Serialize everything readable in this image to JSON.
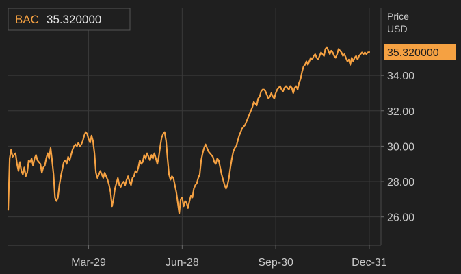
{
  "chart_data": {
    "type": "line",
    "ticker": "BAC",
    "last_value_label": "35.320000",
    "axis_title_line1": "Price",
    "axis_title_line2": "USD",
    "yticks": [
      {
        "value": 26,
        "label": "26.00"
      },
      {
        "value": 28,
        "label": "28.00"
      },
      {
        "value": 30,
        "label": "30.00"
      },
      {
        "value": 32,
        "label": "32.00"
      },
      {
        "value": 34,
        "label": "34.00"
      }
    ],
    "xticks": [
      {
        "index": 55,
        "label": "Mar-29"
      },
      {
        "index": 119,
        "label": "Jun-28"
      },
      {
        "index": 183,
        "label": "Sep-30"
      },
      {
        "index": 247,
        "label": "Dec-31"
      }
    ],
    "ylim": [
      24.4,
      37.8
    ],
    "xlim": [
      0,
      255
    ],
    "grid": true,
    "colors": {
      "line": "#f5a142",
      "grid": "#3a3a3a",
      "background": "#1f1f1f",
      "text": "#c8c8c8",
      "badge_bg": "#f5a142",
      "badge_text": "#1f1f1f"
    },
    "series": [
      {
        "values": [
          26.4,
          29.3,
          29.8,
          29.4,
          29.5,
          29.6,
          29.0,
          28.6,
          29.1,
          28.6,
          28.4,
          28.8,
          28.3,
          28.5,
          29.2,
          29.1,
          29.3,
          28.9,
          29.3,
          29.5,
          29.2,
          29.1,
          29.0,
          28.5,
          28.8,
          28.9,
          29.3,
          29.6,
          29.3,
          29.9,
          29.2,
          28.4,
          27.1,
          26.9,
          27.1,
          27.8,
          28.3,
          28.7,
          29.1,
          29.2,
          29.0,
          29.4,
          29.2,
          29.5,
          29.8,
          30.0,
          30.1,
          30.0,
          30.2,
          30.0,
          30.1,
          30.3,
          30.6,
          30.8,
          30.7,
          30.4,
          30.2,
          30.6,
          30.3,
          29.6,
          28.5,
          28.2,
          28.4,
          28.6,
          28.4,
          28.2,
          28.5,
          28.3,
          28.1,
          27.8,
          27.4,
          26.6,
          27.0,
          27.6,
          27.9,
          28.2,
          27.8,
          27.7,
          27.9,
          28.0,
          27.8,
          28.1,
          28.3,
          28.0,
          27.8,
          28.2,
          28.3,
          28.6,
          28.5,
          28.8,
          29.2,
          29.0,
          29.1,
          29.5,
          29.3,
          29.6,
          29.4,
          29.2,
          29.5,
          29.3,
          29.6,
          29.3,
          29.0,
          29.4,
          30.0,
          30.5,
          30.7,
          30.8,
          30.3,
          29.3,
          28.4,
          28.1,
          28.3,
          28.2,
          27.8,
          27.4,
          26.8,
          26.2,
          27.0,
          27.1,
          26.6,
          26.9,
          26.8,
          26.5,
          26.9,
          27.2,
          27.1,
          27.6,
          27.8,
          27.9,
          28.2,
          28.4,
          29.2,
          29.6,
          29.9,
          30.1,
          29.9,
          29.7,
          29.6,
          29.5,
          29.4,
          29.1,
          29.0,
          29.3,
          29.2,
          28.8,
          28.4,
          28.1,
          27.8,
          27.6,
          27.8,
          28.2,
          28.8,
          29.3,
          29.7,
          29.9,
          30.0,
          30.3,
          30.6,
          30.8,
          31.0,
          31.1,
          31.2,
          31.4,
          31.6,
          31.8,
          32.0,
          32.2,
          32.5,
          32.4,
          32.3,
          32.7,
          32.8,
          33.1,
          33.2,
          33.2,
          33.1,
          32.9,
          32.7,
          32.8,
          33.0,
          32.8,
          32.7,
          33.0,
          33.2,
          33.3,
          33.4,
          33.2,
          33.1,
          33.3,
          33.4,
          33.3,
          33.2,
          33.4,
          33.3,
          33.0,
          33.3,
          33.4,
          33.2,
          33.6,
          33.8,
          34.2,
          34.5,
          34.6,
          34.8,
          34.6,
          34.8,
          35.0,
          34.9,
          35.1,
          35.2,
          35.0,
          34.9,
          35.1,
          35.3,
          35.2,
          35.1,
          35.5,
          35.6,
          35.4,
          35.2,
          35.4,
          35.3,
          35.1,
          35.0,
          35.2,
          35.5,
          35.4,
          35.3,
          35.1,
          35.2,
          35.0,
          34.8,
          34.9,
          34.6,
          35.0,
          34.8,
          35.0,
          35.1,
          34.9,
          35.1,
          35.2,
          35.3,
          35.2,
          35.3,
          35.2,
          35.3,
          35.32
        ]
      }
    ]
  }
}
